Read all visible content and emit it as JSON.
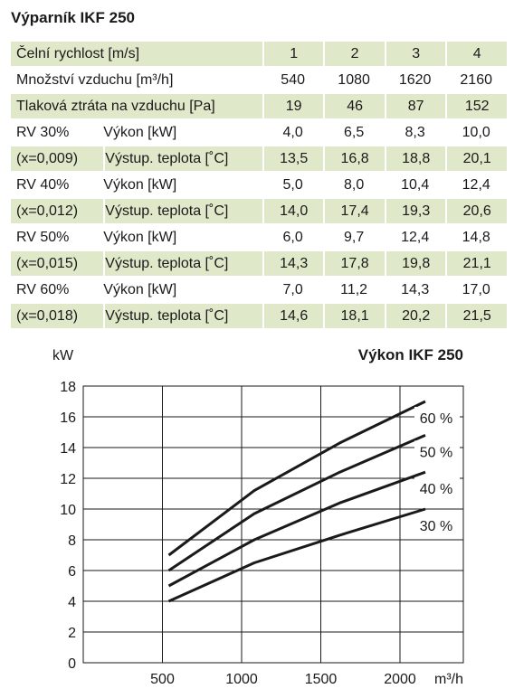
{
  "title": "Výparník IKF 250",
  "table": {
    "header_label": "Čelní rychlost [m/s]",
    "header_values": [
      "1",
      "2",
      "3",
      "4"
    ],
    "air_label": "Množství vzduchu [m³/h]",
    "air_values": [
      "540",
      "1080",
      "1620",
      "2160"
    ],
    "pressure_label": "Tlaková ztráta na vzduchu [Pa]",
    "pressure_values": [
      "19",
      "46",
      "87",
      "152"
    ],
    "groups": [
      {
        "rv": "RV 30%",
        "x": "(x=0,009)",
        "power_label": "Výkon [kW]",
        "power": [
          "4,0",
          "6,5",
          "8,3",
          "10,0"
        ],
        "temp_label": "Výstup. teplota [˚C]",
        "temp": [
          "13,5",
          "16,8",
          "18,8",
          "20,1"
        ]
      },
      {
        "rv": "RV 40%",
        "x": "(x=0,012)",
        "power_label": "Výkon [kW]",
        "power": [
          "5,0",
          "8,0",
          "10,4",
          "12,4"
        ],
        "temp_label": "Výstup. teplota [˚C]",
        "temp": [
          "14,0",
          "17,4",
          "19,3",
          "20,6"
        ]
      },
      {
        "rv": "RV 50%",
        "x": "(x=0,015)",
        "power_label": "Výkon [kW]",
        "power": [
          "6,0",
          "9,7",
          "12,4",
          "14,8"
        ],
        "temp_label": "Výstup. teplota [˚C]",
        "temp": [
          "14,3",
          "17,8",
          "19,8",
          "21,1"
        ]
      },
      {
        "rv": "RV 60%",
        "x": "(x=0,018)",
        "power_label": "Výkon [kW]",
        "power": [
          "7,0",
          "11,2",
          "14,3",
          "17,0"
        ],
        "temp_label": "Výstup. teplota [˚C]",
        "temp": [
          "14,6",
          "18,1",
          "20,2",
          "21,5"
        ]
      }
    ]
  },
  "chart_data": {
    "type": "line",
    "title": "Výkon IKF 250",
    "ylabel": "kW",
    "xlabel": "m³/h",
    "xlim": [
      0,
      2400
    ],
    "ylim": [
      0,
      18
    ],
    "xticks": [
      500,
      1000,
      1500,
      2000
    ],
    "yticks": [
      0,
      2,
      4,
      6,
      8,
      10,
      12,
      14,
      16,
      18
    ],
    "grid": true,
    "series": [
      {
        "name": "30 %",
        "x": [
          540,
          1080,
          1620,
          2160
        ],
        "values": [
          4.0,
          6.5,
          8.3,
          10.0
        ]
      },
      {
        "name": "40 %",
        "x": [
          540,
          1080,
          1620,
          2160
        ],
        "values": [
          5.0,
          8.0,
          10.4,
          12.4
        ]
      },
      {
        "name": "50 %",
        "x": [
          540,
          1080,
          1620,
          2160
        ],
        "values": [
          6.0,
          9.7,
          12.4,
          14.8
        ]
      },
      {
        "name": "60 %",
        "x": [
          540,
          1080,
          1620,
          2160
        ],
        "values": [
          7.0,
          11.2,
          14.3,
          17.0
        ]
      }
    ],
    "line_color": "#1a1a1a"
  }
}
